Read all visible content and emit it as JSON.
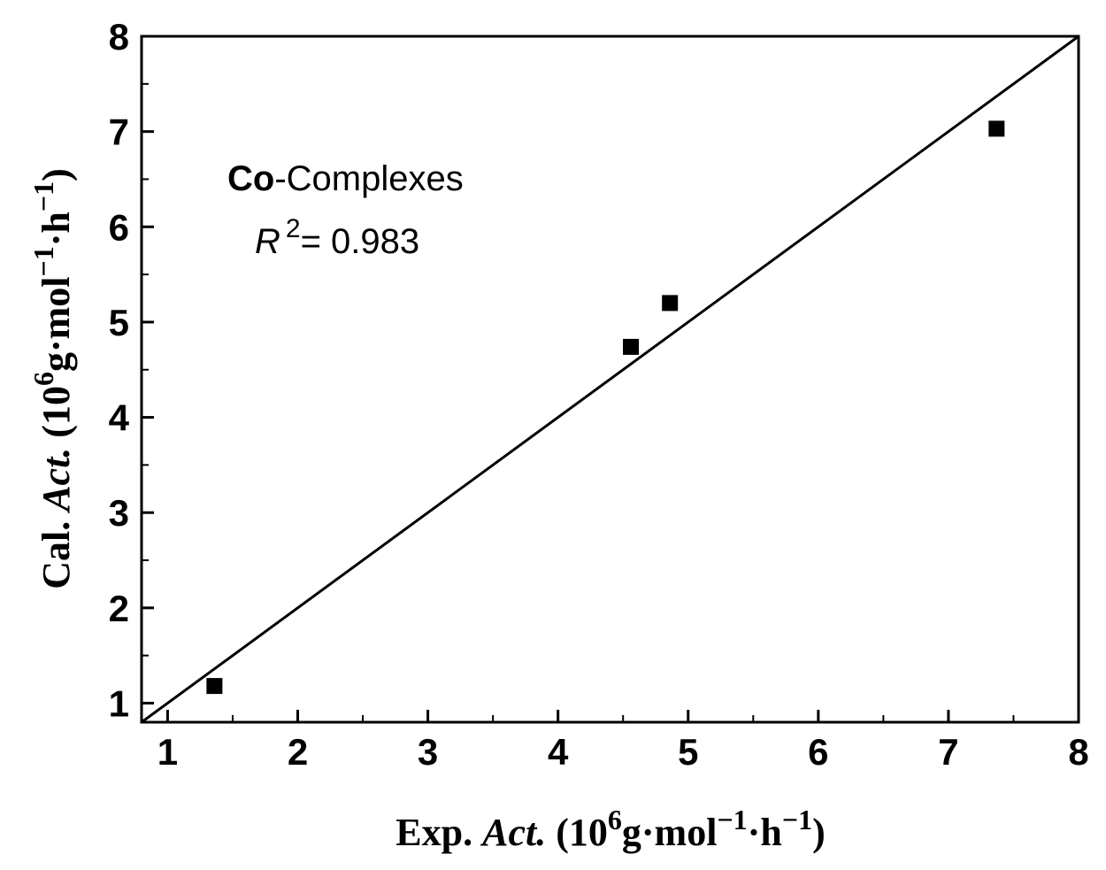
{
  "chart_data": {
    "type": "scatter",
    "series": [
      {
        "points": [
          {
            "x": 1.36,
            "y": 1.18
          },
          {
            "x": 4.56,
            "y": 4.74
          },
          {
            "x": 4.86,
            "y": 5.2
          },
          {
            "x": 7.37,
            "y": 7.03
          }
        ],
        "marker": "square",
        "color": "#000000"
      }
    ],
    "fit_line": {
      "from": [
        0.8,
        0.8
      ],
      "to": [
        8,
        8
      ]
    },
    "xlim": [
      0.8,
      8
    ],
    "ylim": [
      0.8,
      8
    ],
    "xticks": [
      "1",
      "2",
      "3",
      "4",
      "5",
      "6",
      "7",
      "8"
    ],
    "yticks": [
      "1",
      "2",
      "3",
      "4",
      "5",
      "6",
      "7",
      "8"
    ],
    "xlabel": {
      "prefix": "Exp. ",
      "italic": "Act.",
      "open": " (10",
      "sup1": "6",
      "mid": "g·mol",
      "sup2": "−1",
      "mid2": "·h",
      "sup3": "−1",
      "close": ")"
    },
    "ylabel": {
      "prefix": "Cal. ",
      "italic": "Act.",
      "open": " (10",
      "sup1": "6",
      "mid": "g·mol",
      "sup2": "−1",
      "mid2": "·h",
      "sup3": "−1",
      "close": ")"
    },
    "annotation": {
      "bold": "Co",
      "rest": "-Complexes",
      "r_symbol": "R",
      "r_sup": "2",
      "r_value": "= 0.983"
    },
    "grid": false
  }
}
